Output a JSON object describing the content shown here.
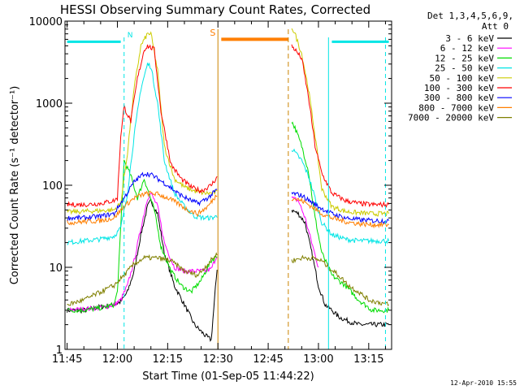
{
  "colors": {
    "background": "#ffffff",
    "axes": "#000000",
    "attenuator_bar": "#00e5e5",
    "saa_bar": "#ff7f00",
    "night_marker": "#00e5e5",
    "saa_marker": "#cc8400"
  },
  "chart_data": {
    "type": "line",
    "title": "HESSI Observing Summary Count Rates, Corrected",
    "xlabel": "Start Time (01-Sep-05 11:44:22)",
    "ylabel": "Corrected Count Rate (s⁻¹ detector⁻¹)",
    "y_scale": "log",
    "ylim": [
      1,
      10000
    ],
    "xlim": [
      "11:44:22",
      "13:21:50"
    ],
    "x_ticks": [
      "11:45",
      "12:00",
      "12:15",
      "12:30",
      "12:45",
      "13:00",
      "13:15"
    ],
    "y_ticks": [
      "1",
      "10",
      "100",
      "1000",
      "10000"
    ],
    "legend_header": [
      "Det 1,3,4,5,6,9,",
      "Att 0"
    ],
    "legend_position": "top-right",
    "footer_date": "12-Apr-2010 15:55",
    "flag_labels": {
      "night": "N",
      "saa": "S"
    },
    "flags": {
      "attenuator_segments": [
        [
          "11:45",
          "12:01"
        ],
        [
          "13:04",
          "13:21"
        ]
      ],
      "saa_segment": [
        "12:31",
        "12:51"
      ],
      "night_markers": [
        "12:02",
        "13:20"
      ],
      "day_markers": [
        "13:03"
      ],
      "saa_markers": [
        "12:30",
        "12:51"
      ]
    },
    "gap": [
      "12:31",
      "12:52"
    ],
    "series": [
      {
        "name": "3 - 6 keV",
        "color": "#000000",
        "x": [
          "11:45",
          "11:50",
          "11:55",
          "11:59",
          "12:01",
          "12:03",
          "12:05",
          "12:07",
          "12:09",
          "12:10",
          "12:12",
          "12:14",
          "12:17",
          "12:20",
          "12:23",
          "12:26",
          "12:28",
          "12:30",
          "12:52",
          "12:54",
          "12:56",
          "12:58",
          "13:00",
          "13:02",
          "13:04",
          "13:06",
          "13:09",
          "13:12",
          "13:15",
          "13:18",
          "13:21"
        ],
        "y": [
          3,
          3,
          3.3,
          3.5,
          3.8,
          5,
          9,
          25,
          55,
          65,
          45,
          15,
          6,
          3.5,
          2,
          1.5,
          1.3,
          13,
          50,
          45,
          35,
          15,
          6,
          3.5,
          3,
          2.5,
          2.2,
          2,
          2,
          2,
          2
        ]
      },
      {
        "name": "6 - 12 keV",
        "color": "#ff00ff",
        "x": [
          "11:45",
          "11:55",
          "11:59",
          "12:01",
          "12:03",
          "12:05",
          "12:07",
          "12:09",
          "12:10",
          "12:12",
          "12:14",
          "12:17",
          "12:20",
          "12:23",
          "12:26",
          "12:28",
          "12:30",
          "12:52",
          "12:54",
          "12:56",
          "12:58",
          "13:00"
        ],
        "y": [
          3,
          3.2,
          3.5,
          4,
          6,
          12,
          30,
          70,
          80,
          55,
          20,
          10,
          9,
          9,
          9,
          9.5,
          15,
          70,
          65,
          40,
          20,
          10
        ]
      },
      {
        "name": "12 - 25 keV",
        "color": "#00dd00",
        "x": [
          "11:45",
          "11:50",
          "11:55",
          "11:59",
          "12:00",
          "12:01",
          "12:02",
          "12:04",
          "12:06",
          "12:08",
          "12:09",
          "12:11",
          "12:13",
          "12:16",
          "12:19",
          "12:22",
          "12:25",
          "12:28",
          "12:30",
          "12:52",
          "12:53",
          "12:55",
          "12:57",
          "12:59",
          "13:01",
          "13:04",
          "13:08",
          "13:12",
          "13:16",
          "13:21"
        ],
        "y": [
          3,
          3,
          3.2,
          3.5,
          5,
          30,
          200,
          130,
          70,
          120,
          90,
          50,
          18,
          9,
          6,
          5,
          7,
          12,
          14,
          600,
          500,
          300,
          150,
          40,
          15,
          8,
          6,
          4,
          3,
          3
        ]
      },
      {
        "name": "25 - 50 keV",
        "color": "#00e5e5",
        "x": [
          "11:45",
          "11:50",
          "11:55",
          "11:59",
          "12:01",
          "12:03",
          "12:05",
          "12:07",
          "12:09",
          "12:10",
          "12:12",
          "12:14",
          "12:17",
          "12:20",
          "12:23",
          "12:26",
          "12:28",
          "12:30",
          "12:52",
          "12:53",
          "12:55",
          "12:57",
          "12:59",
          "13:01",
          "13:04",
          "13:08",
          "13:12",
          "13:16",
          "13:21"
        ],
        "y": [
          20,
          21,
          22,
          24,
          30,
          80,
          400,
          1500,
          3000,
          2800,
          1000,
          200,
          80,
          55,
          42,
          40,
          40,
          42,
          280,
          250,
          200,
          130,
          70,
          35,
          25,
          22,
          21,
          21,
          21
        ]
      },
      {
        "name": "50 - 100 keV",
        "color": "#cccc00",
        "x": [
          "11:45",
          "11:50",
          "11:55",
          "11:59",
          "12:01",
          "12:03",
          "12:05",
          "12:07",
          "12:09",
          "12:10",
          "12:12",
          "12:14",
          "12:17",
          "12:20",
          "12:23",
          "12:26",
          "12:28",
          "12:30",
          "12:52",
          "12:53",
          "12:55",
          "12:57",
          "12:59",
          "13:01",
          "13:04",
          "13:08",
          "13:12",
          "13:16",
          "13:21"
        ],
        "y": [
          47,
          48,
          49,
          50,
          60,
          250,
          1500,
          5000,
          7000,
          7000,
          2500,
          300,
          120,
          95,
          85,
          80,
          80,
          82,
          8500,
          7000,
          4000,
          1500,
          400,
          90,
          55,
          48,
          46,
          45,
          45
        ]
      },
      {
        "name": "100 - 300 keV",
        "color": "#ff0000",
        "x": [
          "11:45",
          "11:50",
          "11:55",
          "11:59",
          "12:00",
          "12:01",
          "12:02",
          "12:04",
          "12:06",
          "12:08",
          "12:09",
          "12:11",
          "12:13",
          "12:16",
          "12:19",
          "12:22",
          "12:25",
          "12:28",
          "12:30",
          "12:52",
          "12:53",
          "12:55",
          "12:57",
          "12:59",
          "13:01",
          "13:04",
          "13:08",
          "13:12",
          "13:16",
          "13:21"
        ],
        "y": [
          58,
          58,
          60,
          65,
          70,
          400,
          900,
          600,
          2000,
          4500,
          5000,
          4500,
          800,
          180,
          120,
          95,
          85,
          100,
          130,
          5000,
          4500,
          3500,
          1200,
          300,
          140,
          80,
          65,
          60,
          58,
          58
        ]
      },
      {
        "name": "300 - 800 keV",
        "color": "#0000ff",
        "x": [
          "11:45",
          "11:50",
          "11:55",
          "11:59",
          "12:02",
          "12:05",
          "12:08",
          "12:10",
          "12:12",
          "12:15",
          "12:18",
          "12:21",
          "12:24",
          "12:27",
          "12:30",
          "12:52",
          "12:55",
          "12:58",
          "13:01",
          "13:04",
          "13:08",
          "13:12",
          "13:16",
          "13:21"
        ],
        "y": [
          40,
          40,
          42,
          45,
          70,
          110,
          140,
          135,
          120,
          100,
          80,
          68,
          60,
          70,
          90,
          80,
          75,
          62,
          52,
          45,
          40,
          38,
          37,
          37
        ]
      },
      {
        "name": "800 - 7000 keV",
        "color": "#ff7f00",
        "x": [
          "11:45",
          "11:50",
          "11:55",
          "11:59",
          "12:02",
          "12:05",
          "12:08",
          "12:10",
          "12:12",
          "12:15",
          "12:18",
          "12:21",
          "12:24",
          "12:27",
          "12:30",
          "12:52",
          "12:55",
          "12:58",
          "13:01",
          "13:04",
          "13:08",
          "13:12",
          "13:16",
          "13:21"
        ],
        "y": [
          35,
          36,
          37,
          40,
          55,
          70,
          78,
          80,
          78,
          70,
          60,
          50,
          45,
          55,
          80,
          70,
          65,
          55,
          45,
          40,
          36,
          34,
          33,
          33
        ]
      },
      {
        "name": "7000 - 20000 keV",
        "color": "#808000",
        "x": [
          "11:45",
          "11:50",
          "11:55",
          "11:59",
          "12:02",
          "12:05",
          "12:08",
          "12:12",
          "12:16",
          "12:20",
          "12:24",
          "12:27",
          "12:30",
          "12:52",
          "12:55",
          "12:58",
          "13:01",
          "13:03",
          "13:06",
          "13:09",
          "13:12",
          "13:15",
          "13:21"
        ],
        "y": [
          3.5,
          4,
          5,
          6,
          8,
          11,
          13,
          13,
          12,
          9,
          8,
          11,
          15,
          12,
          13,
          13,
          12,
          10,
          8,
          6,
          5,
          4,
          3.5
        ]
      }
    ]
  }
}
